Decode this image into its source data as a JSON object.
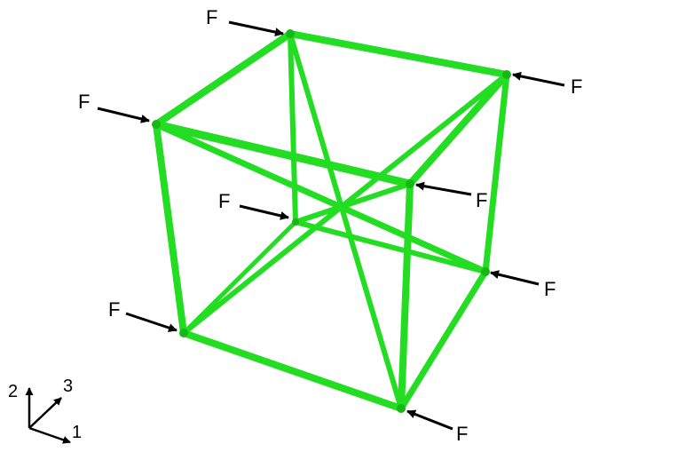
{
  "colors": {
    "strut": "#22dd22",
    "strut_shade": "#15b815",
    "arrow": "#000000",
    "background": "#ffffff"
  },
  "force_label": "F",
  "force_labels": [
    "F",
    "F",
    "F",
    "F",
    "F",
    "F",
    "F",
    "F"
  ],
  "axes": {
    "x_label": "1",
    "y_label": "2",
    "z_label": "3"
  }
}
